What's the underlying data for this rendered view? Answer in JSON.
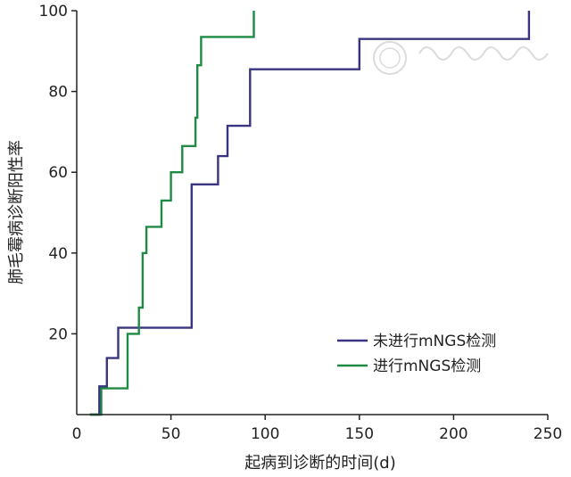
{
  "chart_data": {
    "type": "line",
    "xlabel": "起病到诊断的时间(d)",
    "ylabel": "肺毛霉病诊断阳性率",
    "xlim": [
      0,
      250
    ],
    "ylim": [
      0,
      100
    ],
    "x_ticks": [
      0,
      50,
      100,
      150,
      200,
      250
    ],
    "y_ticks": [
      20,
      40,
      60,
      80,
      100
    ],
    "grid": false,
    "legend_position": "bottom-right",
    "series": [
      {
        "name": "未进行mNGS检测",
        "color": "#3a3580",
        "step": true,
        "x": [
          7,
          12,
          12,
          16,
          16,
          22,
          22,
          61,
          61,
          75,
          75,
          80,
          80,
          92,
          92,
          150,
          150,
          240,
          240
        ],
        "y": [
          0,
          0,
          7,
          7,
          14,
          14,
          21.5,
          21.5,
          57,
          57,
          64,
          64,
          71.5,
          71.5,
          85.5,
          85.5,
          93,
          93,
          100
        ]
      },
      {
        "name": "进行mNGS检测",
        "color": "#1f8a43",
        "step": true,
        "x": [
          7,
          13,
          13,
          27,
          27,
          33,
          33,
          35,
          35,
          37,
          37,
          45,
          45,
          50,
          50,
          56,
          56,
          63,
          63,
          64,
          64,
          66,
          66,
          94,
          94
        ],
        "y": [
          0,
          0,
          6.5,
          6.5,
          20,
          20,
          26.5,
          26.5,
          40,
          40,
          46.5,
          46.5,
          53,
          53,
          60,
          60,
          66.5,
          66.5,
          73.5,
          73.5,
          86.5,
          86.5,
          93.5,
          93.5,
          100
        ]
      }
    ]
  }
}
